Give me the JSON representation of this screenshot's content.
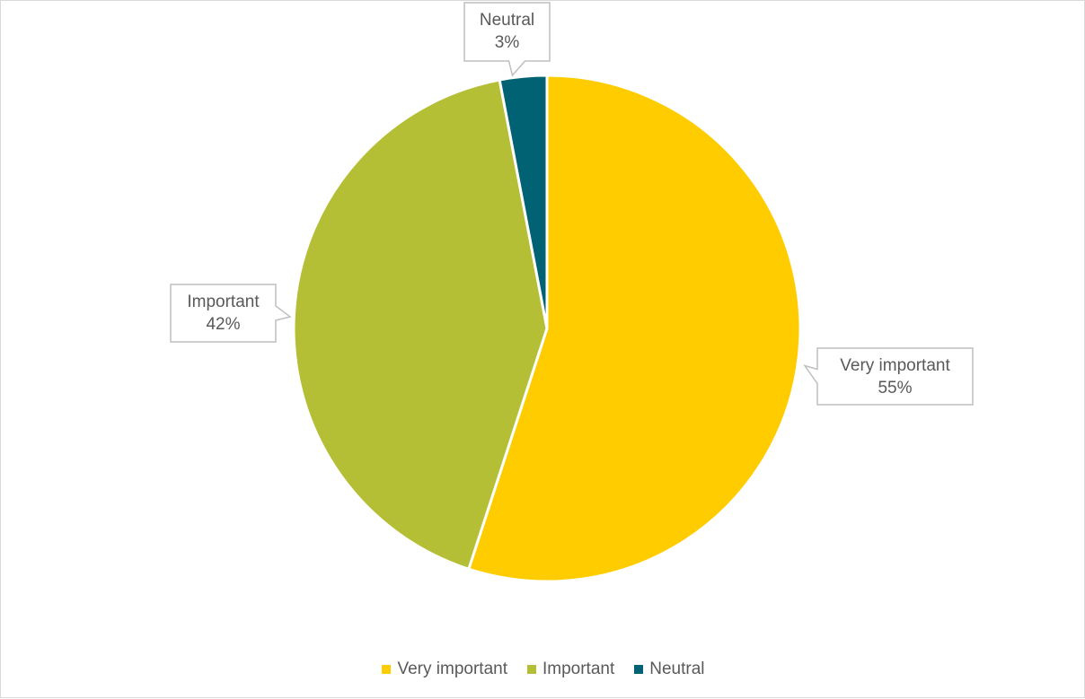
{
  "chart_data": {
    "type": "pie",
    "title": "",
    "slices": [
      {
        "label": "Very important",
        "value": 55,
        "value_label": "55%",
        "color": "#ffcc00"
      },
      {
        "label": "Important",
        "value": 42,
        "value_label": "42%",
        "color": "#b5bf36"
      },
      {
        "label": "Neutral",
        "value": 3,
        "value_label": "3%",
        "color": "#006272"
      }
    ],
    "legend_position": "bottom",
    "data_labels": "callout"
  }
}
